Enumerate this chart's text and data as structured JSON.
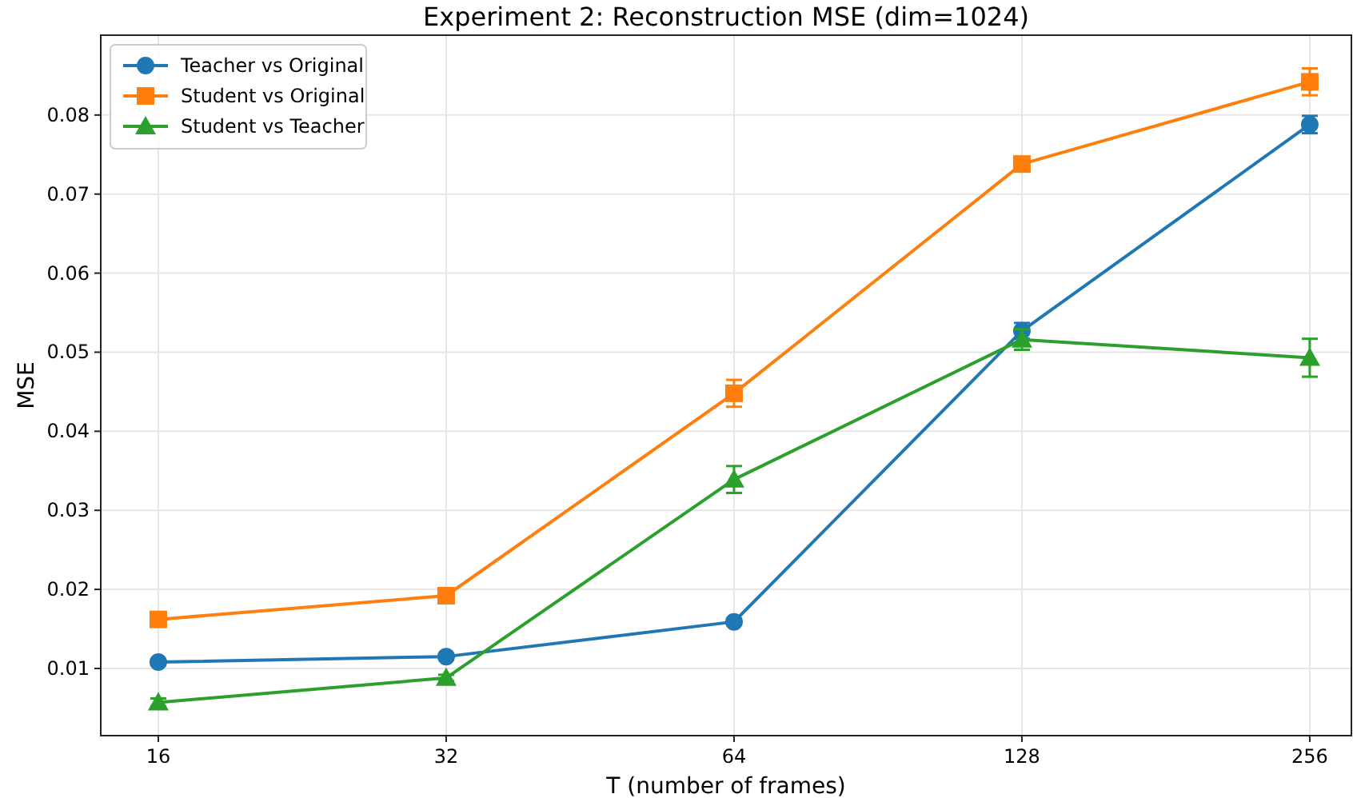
{
  "chart_data": {
    "type": "line",
    "title": "Experiment 2: Reconstruction MSE (dim=1024)",
    "xlabel": "T (number of frames)",
    "ylabel": "MSE",
    "x": [
      16,
      32,
      64,
      128,
      256
    ],
    "log": "x",
    "xlim": [
      13.93,
      283
    ],
    "xticks": [
      16,
      32,
      64,
      128,
      256
    ],
    "ylim": [
      0.0015,
      0.0901
    ],
    "yticks": [
      0.01,
      0.02,
      0.03,
      0.04,
      0.05,
      0.06,
      0.07,
      0.08
    ],
    "grid": true,
    "legend": "top left",
    "series": [
      {
        "name": "Teacher vs Original",
        "color": "#1f77b4",
        "marker": "circle",
        "values": [
          0.0108,
          0.0115,
          0.0159,
          0.0527,
          0.0788
        ],
        "errors": [
          0.0004,
          0.0004,
          0.0004,
          0.001,
          0.0011
        ]
      },
      {
        "name": "Student vs Original",
        "color": "#ff7f0e",
        "marker": "square",
        "values": [
          0.0162,
          0.0192,
          0.0448,
          0.0738,
          0.0842
        ],
        "errors": [
          0.0004,
          0.0004,
          0.0017,
          0.0009,
          0.0017
        ]
      },
      {
        "name": "Student vs Teacher",
        "color": "#2ca02c",
        "marker": "triangle",
        "values": [
          0.0057,
          0.0088,
          0.0339,
          0.0516,
          0.0493
        ],
        "errors": [
          0.0005,
          0.0004,
          0.0017,
          0.0013,
          0.0024
        ]
      }
    ]
  }
}
